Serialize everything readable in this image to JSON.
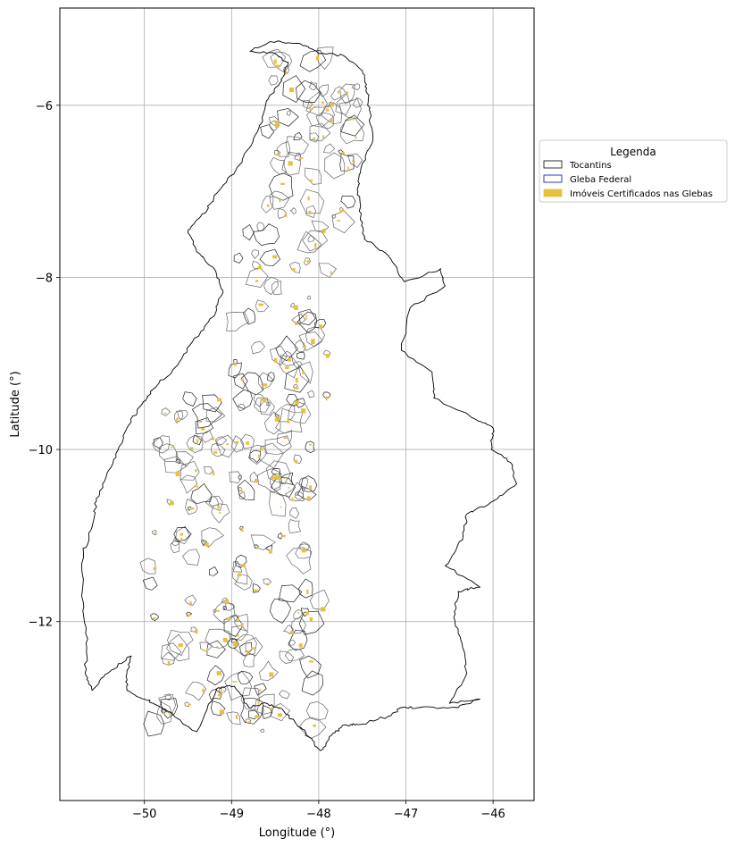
{
  "chart_data": {
    "type": "map",
    "xlabel": "Longitude (°)",
    "ylabel": "Latitude (°)",
    "xlim": [
      -50.97,
      -45.53
    ],
    "ylim": [
      -14.08,
      -4.87
    ],
    "xticks": [
      -50,
      -49,
      -48,
      -47,
      -46
    ],
    "yticks": [
      -6,
      -8,
      -10,
      -12
    ],
    "xtick_labels": [
      "−50",
      "−49",
      "−48",
      "−47",
      "−46"
    ],
    "ytick_labels": [
      "−6",
      "−8",
      "−10",
      "−12"
    ],
    "grid": true,
    "legend": {
      "title": "Legenda",
      "placement": "right-outside-upper",
      "entries": [
        {
          "label": "Tocantins",
          "edge": "#000000",
          "fill": "#ffffff"
        },
        {
          "label": "Gleba Federal",
          "edge": "#0000cc",
          "fill": "#ffffff"
        },
        {
          "label": "Imóveis Certificados nas Glebas",
          "edge": "#e6c13f",
          "fill": "#e6c13f"
        }
      ]
    },
    "state_boundary": [
      [
        -48.79,
        -5.37
      ],
      [
        -48.55,
        -5.26
      ],
      [
        -48.22,
        -5.28
      ],
      [
        -47.98,
        -5.4
      ],
      [
        -47.72,
        -5.42
      ],
      [
        -47.5,
        -5.6
      ],
      [
        -47.45,
        -5.8
      ],
      [
        -47.42,
        -6.05
      ],
      [
        -47.38,
        -6.4
      ],
      [
        -47.52,
        -6.75
      ],
      [
        -47.55,
        -7.0
      ],
      [
        -47.52,
        -7.3
      ],
      [
        -47.48,
        -7.55
      ],
      [
        -47.2,
        -7.75
      ],
      [
        -47.02,
        -8.05
      ],
      [
        -46.6,
        -7.9
      ],
      [
        -46.55,
        -8.1
      ],
      [
        -46.95,
        -8.35
      ],
      [
        -47.05,
        -8.85
      ],
      [
        -46.7,
        -9.1
      ],
      [
        -46.68,
        -9.4
      ],
      [
        -46.2,
        -9.65
      ],
      [
        -46.0,
        -9.75
      ],
      [
        -46.02,
        -10.0
      ],
      [
        -45.8,
        -10.15
      ],
      [
        -45.73,
        -10.4
      ],
      [
        -46.0,
        -10.6
      ],
      [
        -46.3,
        -10.75
      ],
      [
        -46.35,
        -11.05
      ],
      [
        -46.55,
        -11.35
      ],
      [
        -46.15,
        -11.6
      ],
      [
        -46.4,
        -11.65
      ],
      [
        -46.45,
        -11.95
      ],
      [
        -46.35,
        -12.3
      ],
      [
        -46.3,
        -12.6
      ],
      [
        -46.5,
        -12.95
      ],
      [
        -46.15,
        -12.9
      ],
      [
        -46.4,
        -13.0
      ],
      [
        -46.85,
        -13.0
      ],
      [
        -47.05,
        -13.0
      ],
      [
        -47.2,
        -13.1
      ],
      [
        -47.55,
        -13.2
      ],
      [
        -47.7,
        -13.2
      ],
      [
        -47.85,
        -13.32
      ],
      [
        -47.98,
        -13.5
      ],
      [
        -48.1,
        -13.35
      ],
      [
        -48.25,
        -13.2
      ],
      [
        -48.45,
        -13.0
      ],
      [
        -48.6,
        -12.95
      ],
      [
        -48.8,
        -13.0
      ],
      [
        -48.97,
        -12.75
      ],
      [
        -49.17,
        -12.78
      ],
      [
        -49.4,
        -13.28
      ],
      [
        -49.8,
        -13.0
      ],
      [
        -50.0,
        -12.9
      ],
      [
        -50.2,
        -12.8
      ],
      [
        -50.2,
        -12.6
      ],
      [
        -50.15,
        -12.4
      ],
      [
        -50.42,
        -12.6
      ],
      [
        -50.6,
        -12.8
      ],
      [
        -50.68,
        -12.6
      ],
      [
        -50.65,
        -12.2
      ],
      [
        -50.72,
        -11.7
      ],
      [
        -50.7,
        -11.2
      ],
      [
        -50.6,
        -10.9
      ],
      [
        -50.55,
        -10.6
      ],
      [
        -50.45,
        -10.35
      ],
      [
        -50.3,
        -10.0
      ],
      [
        -50.2,
        -9.75
      ],
      [
        -50.05,
        -9.5
      ],
      [
        -49.9,
        -9.3
      ],
      [
        -49.65,
        -9.05
      ],
      [
        -49.45,
        -8.75
      ],
      [
        -49.2,
        -8.45
      ],
      [
        -49.1,
        -8.15
      ],
      [
        -49.2,
        -7.9
      ],
      [
        -49.4,
        -7.7
      ],
      [
        -49.5,
        -7.45
      ],
      [
        -49.3,
        -7.25
      ],
      [
        -49.2,
        -7.05
      ],
      [
        -48.95,
        -6.75
      ],
      [
        -48.8,
        -6.5
      ],
      [
        -48.65,
        -6.2
      ],
      [
        -48.6,
        -5.95
      ],
      [
        -48.45,
        -5.75
      ],
      [
        -48.35,
        -5.5
      ],
      [
        -48.5,
        -5.4
      ],
      [
        -48.79,
        -5.37
      ]
    ]
  }
}
